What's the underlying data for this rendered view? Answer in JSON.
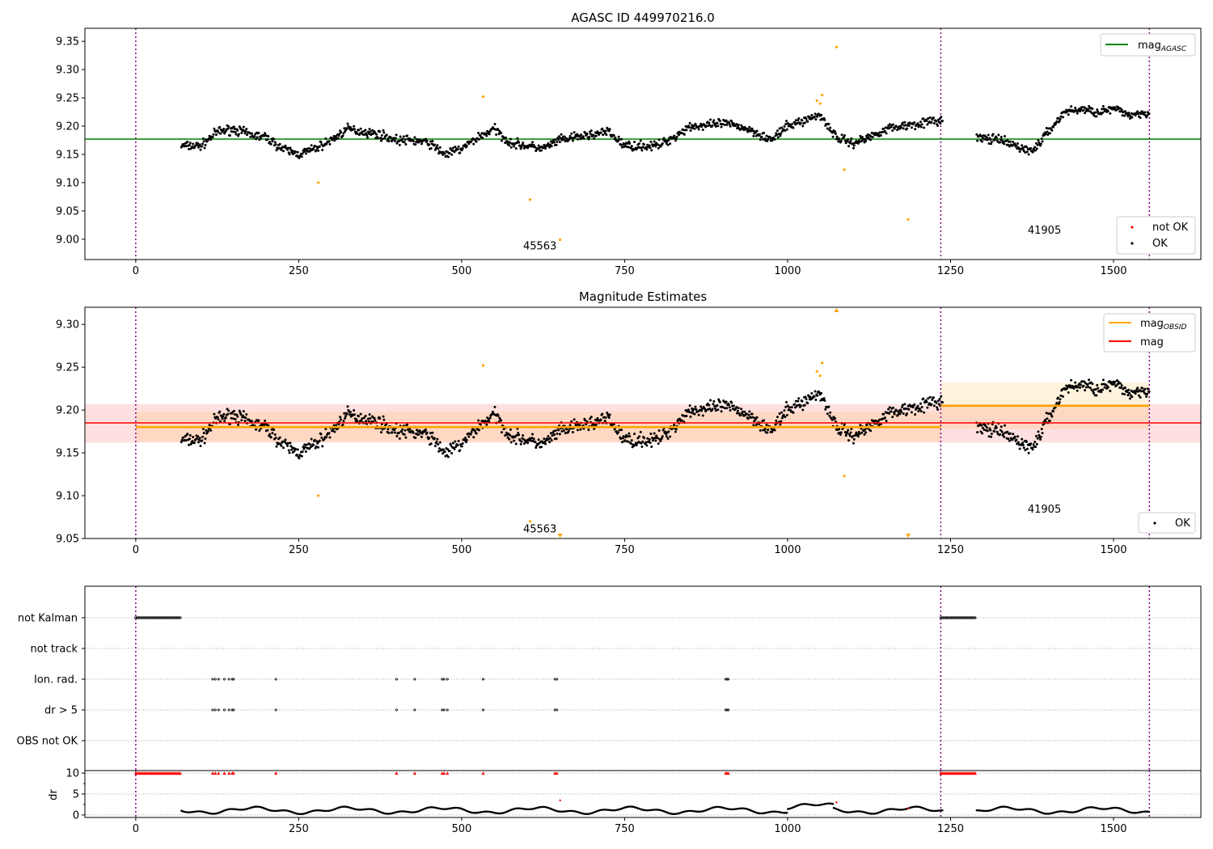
{
  "chart_data": [
    {
      "type": "scatter",
      "title": "AGASC ID 449970216.0",
      "xlim": [
        -78,
        1634
      ],
      "ylim": [
        8.964,
        9.373
      ],
      "xticks": [
        0,
        250,
        500,
        750,
        1000,
        1250,
        1500,
        1750
      ],
      "yticks": [
        9.0,
        9.05,
        9.1,
        9.15,
        9.2,
        9.25,
        9.3,
        9.35
      ],
      "legend_lines": [
        {
          "label": "mag",
          "sub": "AGASC",
          "color": "#008000",
          "value": 9.177
        }
      ],
      "legend_points": [
        {
          "label": "not OK",
          "color": "#ff0000"
        },
        {
          "label": "OK",
          "color": "#000000"
        }
      ],
      "obsid_labels": [
        {
          "text": "45563",
          "x": 620,
          "y": 8.982
        },
        {
          "text": "41905",
          "x": 1394,
          "y": 9.01
        }
      ],
      "obsid_boundaries": [
        0,
        1235,
        1555
      ]
    },
    {
      "type": "scatter",
      "title": "Magnitude Estimates",
      "xlim": [
        -78,
        1634
      ],
      "ylim": [
        9.05,
        9.32
      ],
      "xticks": [
        0,
        250,
        500,
        750,
        1000,
        1250,
        1500,
        1750
      ],
      "yticks": [
        9.05,
        9.1,
        9.15,
        9.2,
        9.25,
        9.3
      ],
      "legend_lines": [
        {
          "label": "mag",
          "sub": "OBSID",
          "color": "#ffa500"
        },
        {
          "label": "mag",
          "sub": "",
          "color": "#ff0000"
        }
      ],
      "legend_points": [
        {
          "label": "OK",
          "color": "#000000"
        }
      ],
      "mag": {
        "value": 9.185,
        "lo": 9.162,
        "hi": 9.207,
        "x": [
          -78,
          1634
        ]
      },
      "mag_obsid": [
        {
          "x": [
            0,
            1235
          ],
          "value": 9.18,
          "lo": 9.163,
          "hi": 9.198
        },
        {
          "x": [
            1235,
            1555
          ],
          "value": 9.205,
          "lo": 9.178,
          "hi": 9.232
        }
      ],
      "obsid_labels": [
        {
          "text": "45563",
          "x": 620,
          "y": 9.057
        },
        {
          "text": "41905",
          "x": 1394,
          "y": 9.08
        }
      ]
    },
    {
      "type": "scatter",
      "title": "",
      "categories": [
        "not Kalman",
        "not track",
        "Ion. rad.",
        "dr > 5",
        "OBS not OK"
      ],
      "not_kalman_ranges": [
        [
          0,
          70
        ],
        [
          1235,
          1290
        ]
      ],
      "ion_rad_times": [
        118,
        122,
        127,
        136,
        143,
        148,
        150,
        215,
        400,
        428,
        470,
        473,
        478,
        533,
        643,
        646,
        905,
        907,
        909
      ],
      "dr_gt5_times": [
        118,
        122,
        127,
        136,
        143,
        148,
        150,
        215,
        400,
        428,
        470,
        473,
        478,
        533,
        643,
        646,
        905,
        907,
        909
      ]
    },
    {
      "type": "line",
      "ylabel": "dr",
      "ylim": [
        -0.6,
        10.6
      ],
      "yticks": [
        0,
        5,
        10
      ],
      "xticks": [
        0,
        250,
        500,
        750,
        1000,
        1250,
        1500,
        1750
      ],
      "clipped_value": 10,
      "red_points": [
        {
          "x": 651,
          "y": 3.5
        },
        {
          "x": 1075,
          "y": 3.0
        },
        {
          "x": 1185,
          "y": 1.6
        }
      ]
    }
  ],
  "series": {
    "trend_t": [
      70,
      100,
      125,
      150,
      175,
      200,
      225,
      250,
      275,
      300,
      325,
      350,
      375,
      400,
      425,
      450,
      475,
      500,
      525,
      550,
      575,
      600,
      625,
      650,
      675,
      700,
      725,
      750,
      775,
      800,
      825,
      850,
      875,
      900,
      925,
      950,
      975,
      1000,
      1025,
      1050,
      1075,
      1100,
      1125,
      1150,
      1175,
      1200,
      1235,
      1290,
      1325,
      1350,
      1375,
      1400,
      1425,
      1450,
      1475,
      1500,
      1525,
      1555
    ],
    "trend_mag": [
      9.165,
      9.165,
      9.19,
      9.195,
      9.185,
      9.18,
      9.16,
      9.15,
      9.16,
      9.175,
      9.195,
      9.19,
      9.185,
      9.175,
      9.175,
      9.17,
      9.15,
      9.16,
      9.18,
      9.195,
      9.17,
      9.165,
      9.16,
      9.175,
      9.18,
      9.185,
      9.19,
      9.165,
      9.165,
      9.165,
      9.18,
      9.2,
      9.2,
      9.205,
      9.2,
      9.19,
      9.175,
      9.2,
      9.21,
      9.22,
      9.18,
      9.17,
      9.18,
      9.195,
      9.2,
      9.205,
      9.21,
      9.18,
      9.175,
      9.165,
      9.155,
      9.19,
      9.225,
      9.23,
      9.225,
      9.23,
      9.22,
      9.225
    ],
    "outliers": [
      [
        280,
        9.1
      ],
      [
        533,
        9.252
      ],
      [
        605,
        9.07
      ],
      [
        651,
        8.999
      ],
      [
        1045,
        9.245
      ],
      [
        1050,
        9.24
      ],
      [
        1053,
        9.255
      ],
      [
        1075,
        9.34
      ],
      [
        1087,
        9.123
      ],
      [
        1185,
        9.035
      ]
    ]
  }
}
